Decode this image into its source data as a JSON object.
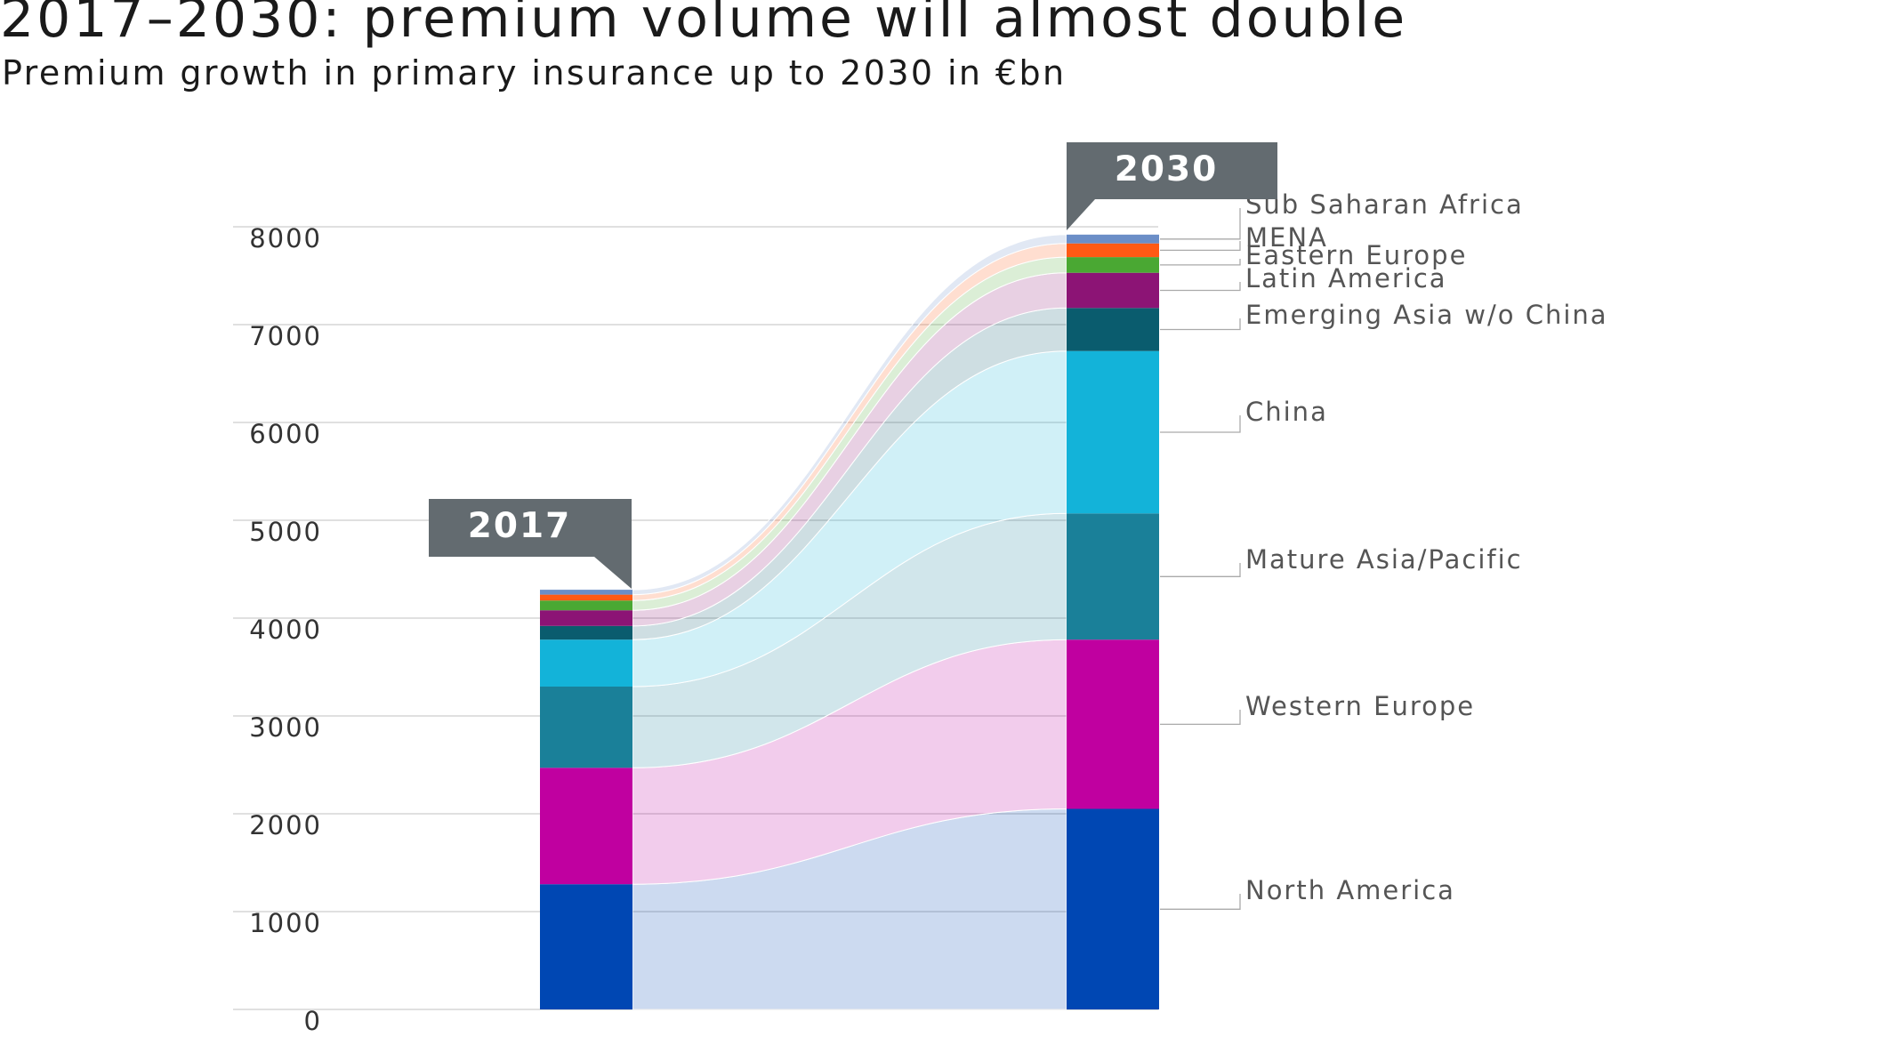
{
  "title": "2017–2030: premium volume will almost double",
  "subtitle": "Premium growth in primary insurance up to 2030 in €bn",
  "chart_data": {
    "type": "bar",
    "stacked": true,
    "categories": [
      "2017",
      "2030"
    ],
    "series": [
      {
        "name": "North America",
        "color": "#0047b3",
        "values": [
          1280,
          2050
        ]
      },
      {
        "name": "Western Europe",
        "color": "#c000a0",
        "values": [
          1190,
          1730
        ]
      },
      {
        "name": "Mature Asia/Pacific",
        "color": "#1a8099",
        "values": [
          830,
          1290
        ]
      },
      {
        "name": "China",
        "color": "#13b3d9",
        "values": [
          480,
          1660
        ]
      },
      {
        "name": "Emerging Asia w/o China",
        "color": "#0a5c6e",
        "values": [
          140,
          440
        ]
      },
      {
        "name": "Latin America",
        "color": "#8c1475",
        "values": [
          160,
          360
        ]
      },
      {
        "name": "Eastern Europe",
        "color": "#4aa833",
        "values": [
          100,
          160
        ]
      },
      {
        "name": "MENA",
        "color": "#ff5a14",
        "values": [
          60,
          140
        ]
      },
      {
        "name": "Sub Saharan Africa",
        "color": "#6b8ec7",
        "values": [
          50,
          90
        ]
      }
    ],
    "yticks": [
      "0",
      "1000",
      "2000",
      "3000",
      "4000",
      "5000",
      "6000",
      "7000",
      "8000"
    ],
    "ylim": [
      0,
      8000
    ],
    "xlabel": "",
    "ylabel": "",
    "grid": true,
    "legend": "right"
  }
}
